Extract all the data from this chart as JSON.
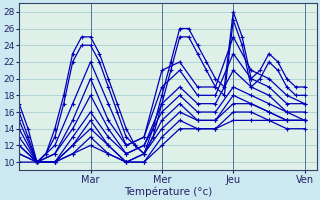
{
  "xlabel": "Température (°c)",
  "xlim": [
    0,
    100
  ],
  "ylim": [
    9,
    29
  ],
  "yticks": [
    10,
    12,
    14,
    16,
    18,
    20,
    22,
    24,
    26,
    28
  ],
  "xtick_positions": [
    24,
    48,
    72,
    96
  ],
  "xtick_labels": [
    "Mar",
    "Mer",
    "Jeu",
    "Ven"
  ],
  "bg_color": "#cce8f0",
  "plot_bg": "#dff0e8",
  "grid_color": "#9ec8cc",
  "line_color": "#0000bb",
  "linewidth": 0.9,
  "markersize": 3.5,
  "forecasts": [
    {
      "x": [
        0,
        3,
        6,
        9,
        12,
        15,
        18,
        21,
        24,
        27,
        30,
        33,
        36,
        39,
        42,
        45,
        48,
        51,
        54,
        57,
        60,
        63,
        66,
        69,
        72,
        75,
        78,
        81,
        84,
        87,
        90,
        93,
        96
      ],
      "y": [
        17,
        14,
        10,
        11,
        14,
        18,
        23,
        25,
        25,
        23,
        20,
        17,
        14,
        12,
        11,
        14,
        18,
        22,
        26,
        26,
        24,
        22,
        20,
        19,
        28,
        25,
        20,
        21,
        23,
        22,
        20,
        19,
        19
      ]
    },
    {
      "x": [
        0,
        3,
        6,
        9,
        12,
        15,
        18,
        21,
        24,
        27,
        30,
        33,
        36,
        39,
        42,
        45,
        48,
        51,
        54,
        57,
        60,
        63,
        66,
        69,
        72,
        75,
        78,
        81,
        84,
        87,
        90,
        93,
        96
      ],
      "y": [
        16,
        13,
        10,
        11,
        13,
        17,
        22,
        24,
        24,
        22,
        19,
        16,
        13,
        12,
        11,
        13,
        17,
        21,
        25,
        25,
        23,
        21,
        19,
        18,
        27,
        24,
        19,
        20,
        22,
        21,
        19,
        18,
        18
      ]
    },
    {
      "x": [
        0,
        6,
        12,
        18,
        24,
        30,
        36,
        42,
        48,
        54,
        60,
        66,
        72,
        78,
        84,
        90,
        96
      ],
      "y": [
        15,
        10,
        12,
        17,
        22,
        17,
        12,
        13,
        21,
        22,
        19,
        19,
        25,
        21,
        20,
        18,
        17
      ]
    },
    {
      "x": [
        0,
        6,
        12,
        18,
        24,
        30,
        36,
        42,
        48,
        54,
        60,
        66,
        72,
        78,
        84,
        90,
        96
      ],
      "y": [
        14,
        10,
        11,
        15,
        20,
        15,
        12,
        13,
        19,
        21,
        18,
        18,
        23,
        20,
        19,
        17,
        17
      ]
    },
    {
      "x": [
        0,
        6,
        12,
        18,
        24,
        30,
        36,
        42,
        48,
        54,
        60,
        66,
        72,
        78,
        84,
        90,
        96
      ],
      "y": [
        13,
        10,
        11,
        14,
        18,
        14,
        11,
        12,
        17,
        19,
        17,
        17,
        21,
        19,
        18,
        16,
        16
      ]
    },
    {
      "x": [
        0,
        6,
        12,
        18,
        24,
        30,
        36,
        42,
        48,
        54,
        60,
        66,
        72,
        78,
        84,
        90,
        96
      ],
      "y": [
        12,
        10,
        10,
        13,
        16,
        13,
        11,
        12,
        16,
        18,
        16,
        16,
        19,
        18,
        17,
        16,
        15
      ]
    },
    {
      "x": [
        0,
        6,
        12,
        18,
        24,
        30,
        36,
        42,
        48,
        54,
        60,
        66,
        72,
        78,
        84,
        90,
        96
      ],
      "y": [
        12,
        10,
        10,
        12,
        15,
        12,
        10,
        11,
        15,
        17,
        15,
        15,
        18,
        17,
        16,
        15,
        15
      ]
    },
    {
      "x": [
        0,
        6,
        12,
        18,
        24,
        30,
        36,
        42,
        48,
        54,
        60,
        66,
        72,
        78,
        84,
        90,
        96
      ],
      "y": [
        11,
        10,
        10,
        12,
        14,
        12,
        10,
        11,
        14,
        16,
        15,
        15,
        17,
        17,
        16,
        15,
        15
      ]
    },
    {
      "x": [
        0,
        6,
        12,
        18,
        24,
        30,
        36,
        42,
        48,
        54,
        60,
        66,
        72,
        78,
        84,
        90,
        96
      ],
      "y": [
        11,
        10,
        10,
        11,
        13,
        11,
        10,
        10,
        13,
        15,
        14,
        14,
        16,
        16,
        15,
        15,
        15
      ]
    },
    {
      "x": [
        0,
        6,
        12,
        18,
        24,
        30,
        36,
        42,
        48,
        54,
        60,
        66,
        72,
        78,
        84,
        90,
        96
      ],
      "y": [
        10,
        10,
        10,
        11,
        12,
        11,
        10,
        10,
        12,
        14,
        14,
        14,
        15,
        15,
        15,
        14,
        14
      ]
    }
  ]
}
